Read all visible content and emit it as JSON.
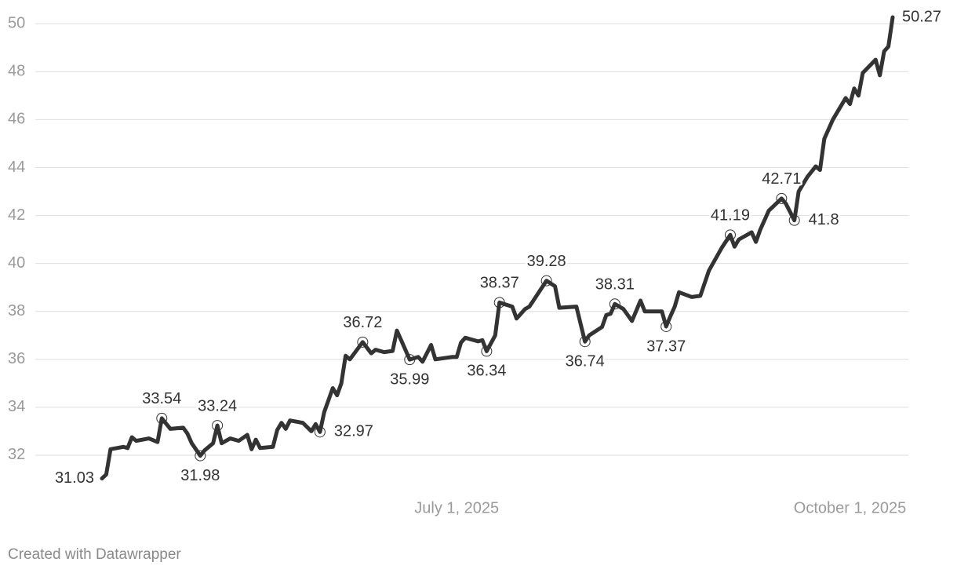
{
  "chart_data": {
    "type": "line",
    "footer": "Created with Datawrapper",
    "x": [
      "2025-04-09",
      "2025-04-10",
      "2025-04-11",
      "2025-04-14",
      "2025-04-15",
      "2025-04-16",
      "2025-04-17",
      "2025-04-20",
      "2025-04-22",
      "2025-04-23",
      "2025-04-25",
      "2025-04-28",
      "2025-04-29",
      "2025-04-30",
      "2025-05-02",
      "2025-05-03",
      "2025-05-05",
      "2025-05-06",
      "2025-05-07",
      "2025-05-09",
      "2025-05-11",
      "2025-05-13",
      "2025-05-14",
      "2025-05-15",
      "2025-05-16",
      "2025-05-19",
      "2025-05-20",
      "2025-05-21",
      "2025-05-22",
      "2025-05-23",
      "2025-05-26",
      "2025-05-28",
      "2025-05-29",
      "2025-05-30",
      "2025-05-31",
      "2025-06-02",
      "2025-06-03",
      "2025-06-04",
      "2025-06-05",
      "2025-06-06",
      "2025-06-09",
      "2025-06-11",
      "2025-06-12",
      "2025-06-14",
      "2025-06-16",
      "2025-06-17",
      "2025-06-18",
      "2025-06-20",
      "2025-06-22",
      "2025-06-23",
      "2025-06-25",
      "2025-06-26",
      "2025-06-30",
      "2025-07-01",
      "2025-07-02",
      "2025-07-03",
      "2025-07-06",
      "2025-07-07",
      "2025-07-08",
      "2025-07-10",
      "2025-07-11",
      "2025-07-14",
      "2025-07-15",
      "2025-07-17",
      "2025-07-18",
      "2025-07-22",
      "2025-07-24",
      "2025-07-25",
      "2025-07-29",
      "2025-07-31",
      "2025-08-01",
      "2025-08-04",
      "2025-08-05",
      "2025-08-06",
      "2025-08-07",
      "2025-08-09",
      "2025-08-11",
      "2025-08-13",
      "2025-08-14",
      "2025-08-18",
      "2025-08-19",
      "2025-08-20",
      "2025-08-21",
      "2025-08-22",
      "2025-08-25",
      "2025-08-27",
      "2025-08-29",
      "2025-09-01",
      "2025-09-03",
      "2025-09-04",
      "2025-09-05",
      "2025-09-08",
      "2025-09-09",
      "2025-09-10",
      "2025-09-12",
      "2025-09-15",
      "2025-09-16",
      "2025-09-18",
      "2025-09-19",
      "2025-09-21",
      "2025-09-23",
      "2025-09-24",
      "2025-09-25",
      "2025-09-27",
      "2025-09-30",
      "2025-10-01",
      "2025-10-02",
      "2025-10-03",
      "2025-10-04",
      "2025-10-07",
      "2025-10-08",
      "2025-10-09",
      "2025-10-10",
      "2025-10-11"
    ],
    "series": [
      {
        "color": "#333333",
        "values": [
          31.03,
          31.2,
          32.25,
          32.35,
          32.3,
          32.75,
          32.6,
          32.7,
          32.55,
          33.54,
          33.1,
          33.15,
          32.9,
          32.5,
          31.98,
          32.2,
          32.5,
          33.24,
          32.5,
          32.7,
          32.6,
          32.85,
          32.25,
          32.65,
          32.3,
          32.35,
          33.05,
          33.35,
          33.1,
          33.45,
          33.35,
          33.0,
          33.3,
          32.97,
          33.8,
          34.8,
          34.5,
          35.0,
          36.15,
          36.0,
          36.72,
          36.25,
          36.4,
          36.3,
          36.35,
          37.2,
          36.8,
          35.99,
          36.1,
          35.9,
          36.6,
          36.0,
          36.1,
          36.1,
          36.7,
          36.9,
          36.75,
          36.8,
          36.34,
          37.0,
          38.37,
          38.2,
          37.7,
          38.1,
          38.2,
          39.28,
          39.05,
          38.15,
          38.2,
          36.74,
          37.0,
          37.35,
          37.85,
          37.9,
          38.31,
          38.1,
          37.6,
          38.45,
          38.0,
          38.0,
          37.37,
          37.8,
          38.2,
          38.8,
          38.6,
          38.65,
          39.7,
          40.65,
          41.19,
          40.7,
          41.0,
          41.3,
          40.9,
          41.4,
          42.2,
          42.71,
          42.5,
          41.8,
          43.0,
          43.6,
          44.05,
          43.9,
          45.2,
          46.0,
          46.9,
          46.65,
          47.3,
          47.0,
          47.95,
          48.5,
          47.85,
          48.85,
          49.05,
          50.27
        ],
        "value_labels": [
          "31.03",
          null,
          null,
          null,
          null,
          null,
          null,
          null,
          null,
          "33.54",
          null,
          null,
          null,
          null,
          "31.98",
          null,
          null,
          "33.24",
          null,
          null,
          null,
          null,
          null,
          null,
          null,
          null,
          null,
          null,
          null,
          null,
          null,
          null,
          null,
          "32.97",
          null,
          null,
          null,
          null,
          null,
          null,
          "36.72",
          null,
          null,
          null,
          null,
          null,
          null,
          "35.99",
          null,
          null,
          null,
          null,
          null,
          null,
          null,
          null,
          null,
          null,
          "36.34",
          null,
          "38.37",
          null,
          null,
          null,
          null,
          "39.28",
          null,
          null,
          null,
          "36.74",
          null,
          null,
          null,
          null,
          "38.31",
          null,
          null,
          null,
          null,
          null,
          "37.37",
          null,
          null,
          null,
          null,
          null,
          null,
          null,
          "41.19",
          null,
          null,
          null,
          null,
          null,
          null,
          "42.71",
          null,
          "41.8",
          null,
          null,
          null,
          null,
          null,
          null,
          null,
          null,
          null,
          null,
          null,
          null,
          null,
          null,
          null,
          "50.27"
        ]
      }
    ],
    "xlim": [
      "2025-04-09",
      "2025-10-11"
    ],
    "xticks": [
      {
        "value": "2025-07-01",
        "label": "July 1, 2025"
      },
      {
        "value": "2025-10-01",
        "label": "October 1, 2025"
      }
    ],
    "ylim": [
      31,
      50.5
    ],
    "yticks": [
      32,
      34,
      36,
      38,
      40,
      42,
      44,
      46,
      48,
      50
    ],
    "grid": true
  }
}
